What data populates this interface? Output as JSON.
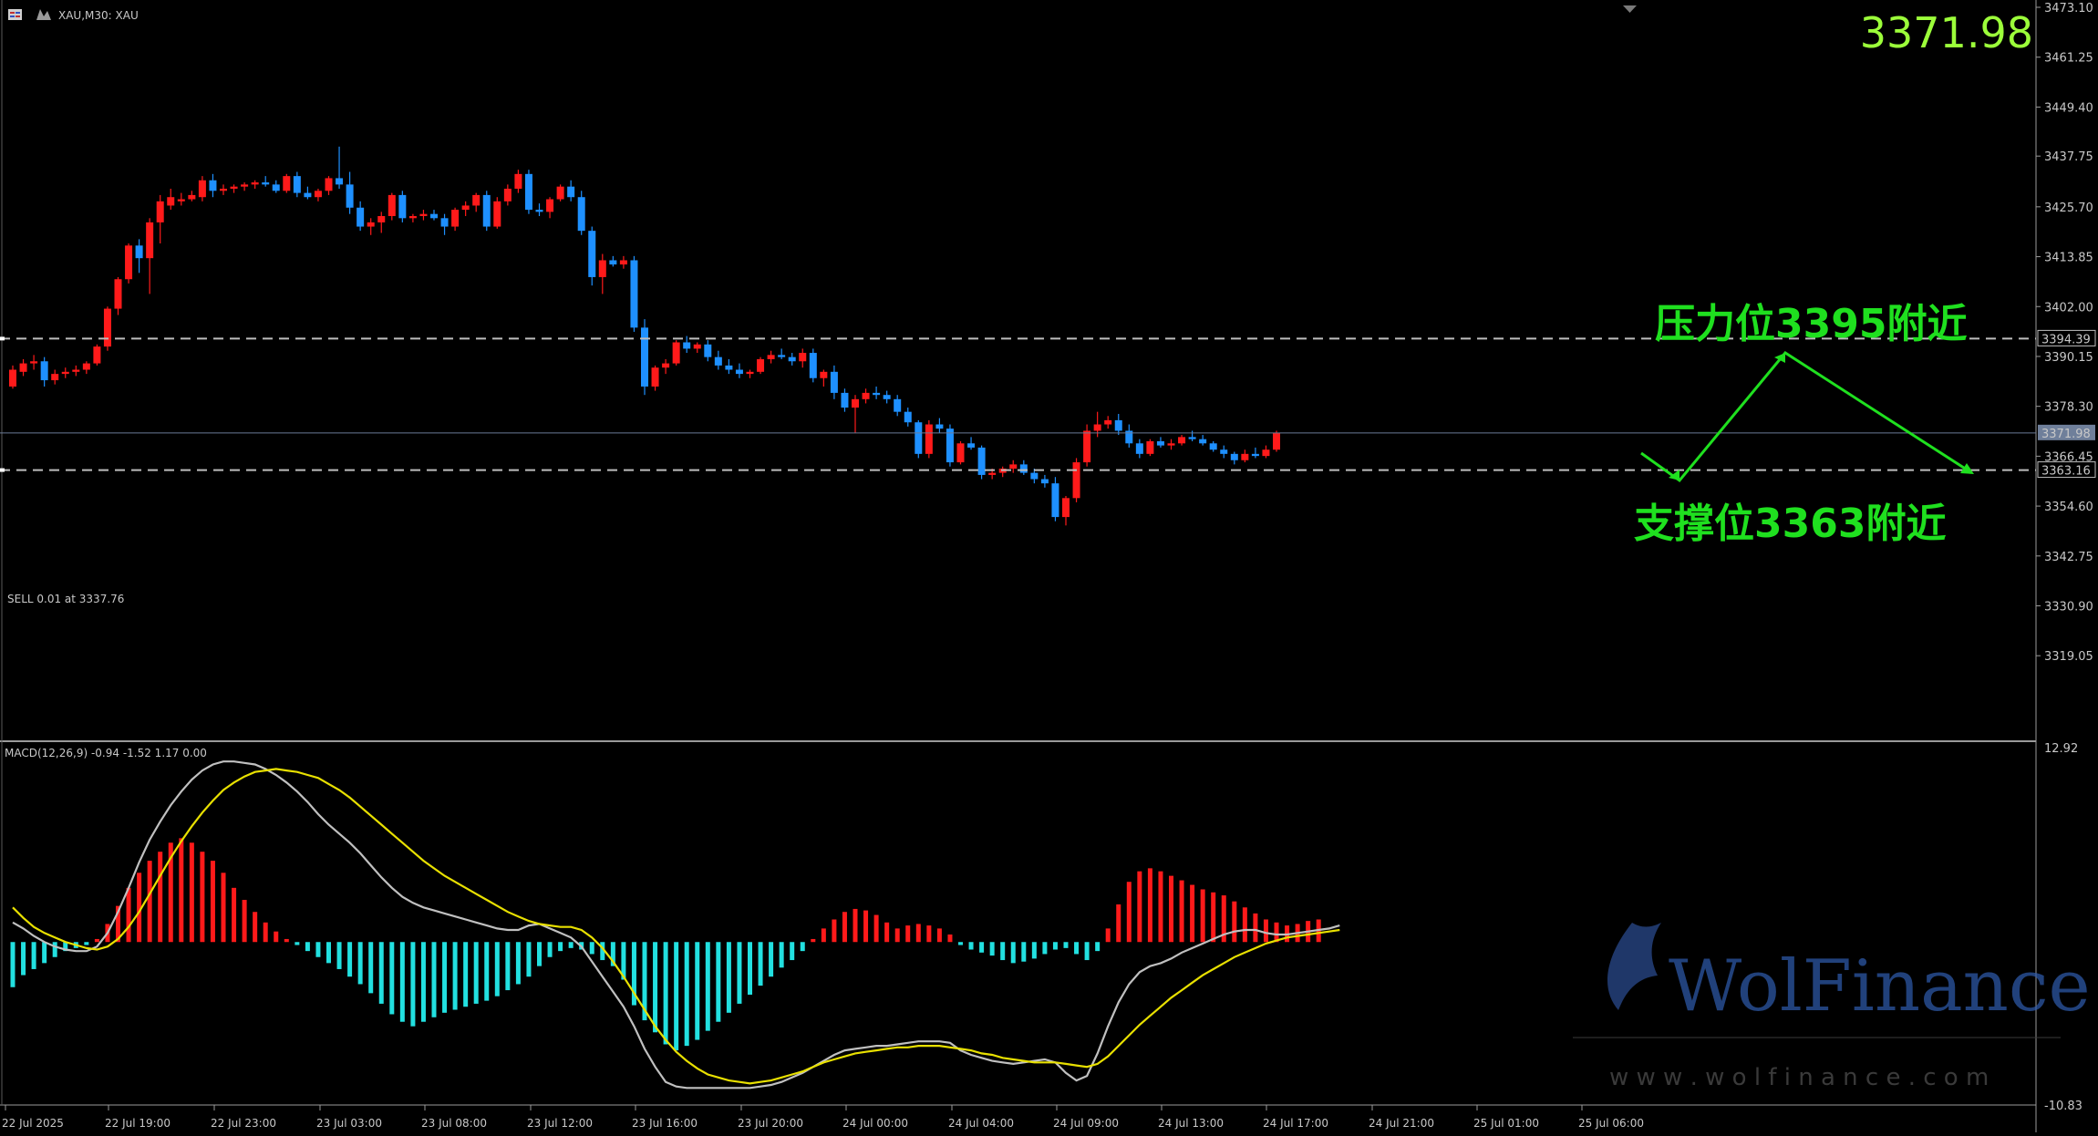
{
  "header": {
    "symbol_label": "XAU,M30:  XAU"
  },
  "big_price": "3371.98",
  "order_label": "SELL 0.01 at 3337.76",
  "annotations": {
    "resistance": "压力位3395附近",
    "support": "支撑位3363附近"
  },
  "current_price": "3371.98",
  "colors": {
    "bull": "#ff1a1a",
    "bear": "#1e90ff",
    "macd_pos": "#ff1a1a",
    "macd_neg": "#22e0e0",
    "macd_line": "#c0c0c0",
    "signal_line": "#e8e000",
    "annotation": "#1fe01f",
    "price_text": "#9cff3a"
  },
  "watermark": {
    "brand": "WolFinance",
    "url": "w w w . w o l f i n a n c e . c o m"
  },
  "chart_data": [
    {
      "type": "candlestick",
      "timeframe": "M30",
      "ylim": [
        3308.05,
        3473.1
      ],
      "y_ticks": [
        "3473.10",
        "3461.25",
        "3449.40",
        "3437.75",
        "3425.70",
        "3413.85",
        "3402.00",
        "3390.15",
        "3378.30",
        "3366.45",
        "3354.60",
        "3342.75",
        "3330.90",
        "3319.05"
      ],
      "x_ticks": [
        "22 Jul 2025",
        "22 Jul 19:00",
        "22 Jul 23:00",
        "23 Jul 03:00",
        "23 Jul 08:00",
        "23 Jul 12:00",
        "23 Jul 16:00",
        "23 Jul 20:00",
        "24 Jul 00:00",
        "24 Jul 04:00",
        "24 Jul 09:00",
        "24 Jul 13:00",
        "24 Jul 17:00",
        "24 Jul 21:00",
        "25 Jul 01:00",
        "25 Jul 06:00"
      ],
      "levels": {
        "resistance": 3394.39,
        "support": 3363.16,
        "current": 3371.98
      },
      "level_labels": {
        "resistance": "3394.39",
        "support": "3363.16",
        "current": "3371.98"
      },
      "ohlc": [
        [
          3383.0,
          3388.0,
          3382.5,
          3387.0
        ],
        [
          3386.5,
          3389.5,
          3385.5,
          3388.5
        ],
        [
          3388.5,
          3390.5,
          3387.0,
          3389.0
        ],
        [
          3389.0,
          3390.0,
          3383.0,
          3384.5
        ],
        [
          3384.5,
          3387.0,
          3383.5,
          3386.0
        ],
        [
          3386.0,
          3387.5,
          3385.0,
          3386.5
        ],
        [
          3386.5,
          3388.0,
          3385.5,
          3387.0
        ],
        [
          3387.0,
          3389.0,
          3386.0,
          3388.5
        ],
        [
          3388.5,
          3393.0,
          3388.0,
          3392.5
        ],
        [
          3392.5,
          3402.0,
          3391.5,
          3401.5
        ],
        [
          3401.5,
          3409.0,
          3400.0,
          3408.5
        ],
        [
          3408.5,
          3417.0,
          3407.5,
          3416.5
        ],
        [
          3416.5,
          3418.0,
          3410.0,
          3413.5
        ],
        [
          3413.5,
          3423.0,
          3405.0,
          3422.0
        ],
        [
          3422.0,
          3428.5,
          3417.0,
          3427.0
        ],
        [
          3426.0,
          3430.0,
          3425.0,
          3428.0
        ],
        [
          3427.0,
          3429.0,
          3426.0,
          3427.5
        ],
        [
          3427.5,
          3429.5,
          3427.0,
          3428.5
        ],
        [
          3428.0,
          3433.0,
          3427.0,
          3432.0
        ],
        [
          3432.0,
          3433.5,
          3428.0,
          3429.5
        ],
        [
          3429.5,
          3431.0,
          3428.5,
          3430.0
        ],
        [
          3430.0,
          3431.0,
          3429.0,
          3430.5
        ],
        [
          3430.5,
          3431.5,
          3429.5,
          3431.0
        ],
        [
          3431.0,
          3432.0,
          3430.0,
          3431.5
        ],
        [
          3431.5,
          3433.0,
          3430.5,
          3431.0
        ],
        [
          3431.0,
          3432.0,
          3429.0,
          3429.5
        ],
        [
          3429.5,
          3433.5,
          3429.0,
          3433.0
        ],
        [
          3433.0,
          3434.0,
          3428.0,
          3429.0
        ],
        [
          3429.0,
          3430.5,
          3427.5,
          3428.0
        ],
        [
          3428.0,
          3430.0,
          3427.0,
          3429.5
        ],
        [
          3429.5,
          3433.0,
          3428.5,
          3432.5
        ],
        [
          3432.5,
          3440.0,
          3430.0,
          3431.0
        ],
        [
          3431.0,
          3434.0,
          3424.0,
          3425.5
        ],
        [
          3425.5,
          3427.0,
          3420.0,
          3421.0
        ],
        [
          3421.0,
          3423.0,
          3419.0,
          3422.0
        ],
        [
          3422.0,
          3424.5,
          3419.5,
          3423.5
        ],
        [
          3423.5,
          3429.0,
          3422.5,
          3428.5
        ],
        [
          3428.5,
          3429.5,
          3422.0,
          3423.0
        ],
        [
          3423.0,
          3424.0,
          3422.0,
          3423.5
        ],
        [
          3423.5,
          3425.0,
          3422.5,
          3424.0
        ],
        [
          3424.0,
          3425.0,
          3422.5,
          3423.0
        ],
        [
          3423.0,
          3424.0,
          3419.0,
          3421.0
        ],
        [
          3421.0,
          3425.5,
          3420.0,
          3425.0
        ],
        [
          3425.0,
          3427.0,
          3423.5,
          3426.0
        ],
        [
          3426.0,
          3429.0,
          3424.5,
          3428.5
        ],
        [
          3428.5,
          3429.5,
          3420.0,
          3421.0
        ],
        [
          3421.0,
          3428.0,
          3420.5,
          3427.0
        ],
        [
          3427.0,
          3431.0,
          3426.0,
          3430.0
        ],
        [
          3430.0,
          3434.5,
          3429.0,
          3433.5
        ],
        [
          3433.5,
          3434.5,
          3424.0,
          3425.0
        ],
        [
          3425.0,
          3426.5,
          3423.5,
          3424.5
        ],
        [
          3424.5,
          3428.0,
          3423.0,
          3427.5
        ],
        [
          3427.5,
          3431.0,
          3427.0,
          3430.5
        ],
        [
          3430.5,
          3432.0,
          3427.0,
          3428.0
        ],
        [
          3428.0,
          3429.5,
          3419.0,
          3420.0
        ],
        [
          3420.0,
          3421.0,
          3407.0,
          3409.0
        ],
        [
          3409.0,
          3414.5,
          3405.0,
          3413.0
        ],
        [
          3413.0,
          3414.0,
          3411.5,
          3412.0
        ],
        [
          3412.0,
          3414.0,
          3411.0,
          3413.0
        ],
        [
          3413.0,
          3414.0,
          3396.0,
          3397.0
        ],
        [
          3397.0,
          3399.0,
          3381.0,
          3383.0
        ],
        [
          3383.0,
          3388.0,
          3382.0,
          3387.5
        ],
        [
          3387.5,
          3389.5,
          3386.0,
          3388.5
        ],
        [
          3388.5,
          3394.0,
          3388.0,
          3393.5
        ],
        [
          3393.5,
          3395.0,
          3391.0,
          3392.0
        ],
        [
          3392.0,
          3393.5,
          3391.0,
          3393.0
        ],
        [
          3393.0,
          3394.0,
          3389.0,
          3390.0
        ],
        [
          3390.0,
          3391.5,
          3387.0,
          3388.0
        ],
        [
          3388.0,
          3389.5,
          3386.0,
          3387.0
        ],
        [
          3387.0,
          3388.5,
          3385.0,
          3386.0
        ],
        [
          3386.0,
          3387.0,
          3385.0,
          3386.5
        ],
        [
          3386.5,
          3390.0,
          3386.0,
          3389.5
        ],
        [
          3389.5,
          3391.5,
          3388.5,
          3390.5
        ],
        [
          3390.5,
          3392.0,
          3389.5,
          3390.0
        ],
        [
          3390.0,
          3391.0,
          3388.0,
          3389.0
        ],
        [
          3389.0,
          3392.0,
          3387.5,
          3391.0
        ],
        [
          3391.0,
          3392.0,
          3384.0,
          3385.0
        ],
        [
          3385.0,
          3387.0,
          3383.0,
          3386.5
        ],
        [
          3386.5,
          3388.0,
          3380.0,
          3381.5
        ],
        [
          3381.5,
          3382.5,
          3377.0,
          3378.0
        ],
        [
          3378.0,
          3381.0,
          3372.0,
          3380.0
        ],
        [
          3380.0,
          3382.5,
          3379.0,
          3381.5
        ],
        [
          3381.5,
          3383.0,
          3380.0,
          3381.0
        ],
        [
          3381.0,
          3382.0,
          3379.0,
          3380.0
        ],
        [
          3380.0,
          3381.0,
          3376.0,
          3377.0
        ],
        [
          3377.0,
          3378.0,
          3373.5,
          3374.5
        ],
        [
          3374.5,
          3375.0,
          3366.0,
          3367.0
        ],
        [
          3367.0,
          3375.0,
          3366.0,
          3374.0
        ],
        [
          3374.0,
          3375.5,
          3372.0,
          3373.0
        ],
        [
          3373.0,
          3374.0,
          3364.0,
          3365.0
        ],
        [
          3365.0,
          3370.0,
          3364.5,
          3369.5
        ],
        [
          3369.5,
          3371.0,
          3368.0,
          3368.5
        ],
        [
          3368.5,
          3369.0,
          3361.0,
          3362.0
        ],
        [
          3362.0,
          3363.5,
          3361.0,
          3362.5
        ],
        [
          3362.5,
          3364.0,
          3361.5,
          3363.5
        ],
        [
          3363.5,
          3365.5,
          3362.5,
          3364.5
        ],
        [
          3364.5,
          3365.5,
          3362.0,
          3362.5
        ],
        [
          3362.5,
          3363.5,
          3360.0,
          3361.0
        ],
        [
          3361.0,
          3362.0,
          3359.0,
          3360.0
        ],
        [
          3360.0,
          3361.5,
          3351.0,
          3352.0
        ],
        [
          3352.0,
          3357.0,
          3350.0,
          3356.5
        ],
        [
          3356.5,
          3366.0,
          3355.5,
          3365.0
        ],
        [
          3365.0,
          3374.0,
          3364.0,
          3372.5
        ],
        [
          3372.5,
          3377.0,
          3371.0,
          3374.0
        ],
        [
          3374.0,
          3376.0,
          3373.0,
          3375.0
        ],
        [
          3375.0,
          3376.5,
          3371.5,
          3372.5
        ],
        [
          3372.5,
          3374.0,
          3368.5,
          3369.5
        ],
        [
          3369.5,
          3370.5,
          3366.0,
          3367.0
        ],
        [
          3367.0,
          3370.5,
          3366.5,
          3370.0
        ],
        [
          3370.0,
          3371.0,
          3368.5,
          3369.0
        ],
        [
          3369.0,
          3370.5,
          3368.0,
          3369.5
        ],
        [
          3369.5,
          3371.5,
          3369.0,
          3371.0
        ],
        [
          3371.0,
          3372.5,
          3370.0,
          3370.5
        ],
        [
          3370.5,
          3371.5,
          3369.0,
          3369.5
        ],
        [
          3369.5,
          3370.0,
          3367.5,
          3368.0
        ],
        [
          3368.0,
          3369.0,
          3366.0,
          3367.0
        ],
        [
          3367.0,
          3367.5,
          3364.5,
          3365.5
        ],
        [
          3365.5,
          3368.0,
          3365.0,
          3367.0
        ],
        [
          3367.0,
          3368.5,
          3366.0,
          3366.5
        ],
        [
          3366.5,
          3369.0,
          3366.0,
          3368.0
        ],
        [
          3368.0,
          3372.5,
          3367.5,
          3371.98
        ]
      ]
    },
    {
      "type": "macd",
      "title": "MACD(12,26,9) -0.94 -1.52 1.17 0.00",
      "ylim": [
        -10.83,
        12.92
      ],
      "y_ticks": [
        "12.92",
        "-10.83"
      ],
      "histogram": [
        -3.0,
        -2.2,
        -1.8,
        -1.4,
        -1.0,
        -0.6,
        -0.4,
        -0.2,
        0.2,
        1.2,
        2.4,
        3.6,
        4.6,
        5.4,
        6.0,
        6.6,
        6.9,
        6.6,
        6.0,
        5.4,
        4.6,
        3.6,
        2.8,
        2.0,
        1.3,
        0.7,
        0.2,
        -0.2,
        -0.6,
        -1.0,
        -1.4,
        -1.8,
        -2.3,
        -2.8,
        -3.4,
        -4.1,
        -4.8,
        -5.3,
        -5.6,
        -5.3,
        -5.0,
        -4.7,
        -4.5,
        -4.3,
        -4.1,
        -3.9,
        -3.6,
        -3.2,
        -2.8,
        -2.3,
        -1.6,
        -1.0,
        -0.6,
        -0.4,
        -0.5,
        -0.8,
        -1.2,
        -1.6,
        -2.5,
        -4.2,
        -5.2,
        -6.0,
        -6.8,
        -7.2,
        -6.9,
        -6.5,
        -5.9,
        -5.3,
        -4.7,
        -4.1,
        -3.5,
        -2.9,
        -2.3,
        -1.7,
        -1.2,
        -0.6,
        0.2,
        0.9,
        1.5,
        2.0,
        2.2,
        2.1,
        1.8,
        1.3,
        0.9,
        1.1,
        1.2,
        1.1,
        0.9,
        0.5,
        -0.2,
        -0.5,
        -0.7,
        -0.9,
        -1.2,
        -1.4,
        -1.3,
        -1.1,
        -0.8,
        -0.5,
        -0.4,
        -0.8,
        -1.2,
        -0.6,
        0.9,
        2.5,
        4.0,
        4.7,
        4.9,
        4.7,
        4.4,
        4.1,
        3.8,
        3.5,
        3.3,
        3.1,
        2.7,
        2.3,
        1.9,
        1.5,
        1.3,
        1.1,
        1.2,
        1.4,
        1.5
      ],
      "macd": [
        1.3,
        0.9,
        0.4,
        0.0,
        -0.3,
        -0.5,
        -0.6,
        -0.6,
        -0.3,
        0.6,
        2.0,
        3.6,
        5.3,
        6.8,
        8.0,
        9.1,
        10.0,
        10.8,
        11.4,
        11.8,
        12.0,
        12.0,
        11.9,
        11.8,
        11.5,
        11.1,
        10.6,
        10.0,
        9.3,
        8.5,
        7.8,
        7.2,
        6.6,
        5.9,
        5.1,
        4.3,
        3.6,
        3.0,
        2.6,
        2.3,
        2.1,
        1.9,
        1.7,
        1.5,
        1.3,
        1.1,
        0.9,
        0.8,
        0.8,
        1.1,
        1.2,
        0.9,
        0.6,
        0.3,
        -0.3,
        -1.3,
        -2.3,
        -3.3,
        -4.3,
        -5.6,
        -7.1,
        -8.3,
        -9.3,
        -9.6,
        -9.7,
        -9.7,
        -9.7,
        -9.7,
        -9.7,
        -9.7,
        -9.7,
        -9.6,
        -9.5,
        -9.3,
        -9.0,
        -8.7,
        -8.3,
        -7.9,
        -7.5,
        -7.2,
        -7.1,
        -7.0,
        -6.9,
        -6.9,
        -6.8,
        -6.7,
        -6.6,
        -6.6,
        -6.6,
        -6.7,
        -7.2,
        -7.5,
        -7.7,
        -7.9,
        -8.0,
        -8.1,
        -8.0,
        -7.9,
        -7.8,
        -8.0,
        -8.7,
        -9.2,
        -8.9,
        -7.4,
        -5.6,
        -4.0,
        -2.8,
        -2.0,
        -1.6,
        -1.4,
        -1.1,
        -0.7,
        -0.4,
        -0.1,
        0.2,
        0.5,
        0.7,
        0.8,
        0.8,
        0.6,
        0.5,
        0.5,
        0.6,
        0.7,
        0.8,
        0.9,
        1.1
      ],
      "signal": [
        2.3,
        1.6,
        1.0,
        0.6,
        0.3,
        0.0,
        -0.2,
        -0.4,
        -0.5,
        -0.3,
        0.2,
        1.0,
        2.0,
        3.2,
        4.4,
        5.6,
        6.7,
        7.7,
        8.6,
        9.4,
        10.1,
        10.6,
        11.0,
        11.3,
        11.4,
        11.5,
        11.4,
        11.3,
        11.1,
        10.9,
        10.5,
        10.1,
        9.6,
        9.0,
        8.4,
        7.8,
        7.2,
        6.6,
        6.0,
        5.4,
        4.9,
        4.4,
        4.0,
        3.6,
        3.2,
        2.8,
        2.4,
        2.0,
        1.7,
        1.4,
        1.2,
        1.1,
        1.0,
        1.0,
        0.8,
        0.3,
        -0.4,
        -1.3,
        -2.3,
        -3.4,
        -4.5,
        -5.6,
        -6.5,
        -7.3,
        -7.9,
        -8.4,
        -8.8,
        -9.0,
        -9.2,
        -9.3,
        -9.4,
        -9.3,
        -9.2,
        -9.0,
        -8.8,
        -8.6,
        -8.3,
        -8.0,
        -7.8,
        -7.6,
        -7.4,
        -7.3,
        -7.2,
        -7.1,
        -7.0,
        -7.0,
        -6.9,
        -6.9,
        -6.9,
        -7.0,
        -7.1,
        -7.2,
        -7.4,
        -7.5,
        -7.7,
        -7.8,
        -7.9,
        -8.0,
        -8.0,
        -8.0,
        -8.1,
        -8.2,
        -8.3,
        -8.1,
        -7.6,
        -6.9,
        -6.2,
        -5.5,
        -4.9,
        -4.3,
        -3.7,
        -3.2,
        -2.7,
        -2.2,
        -1.8,
        -1.4,
        -1.0,
        -0.7,
        -0.4,
        -0.1,
        0.1,
        0.3,
        0.4,
        0.5,
        0.6,
        0.7,
        0.8
      ]
    }
  ]
}
